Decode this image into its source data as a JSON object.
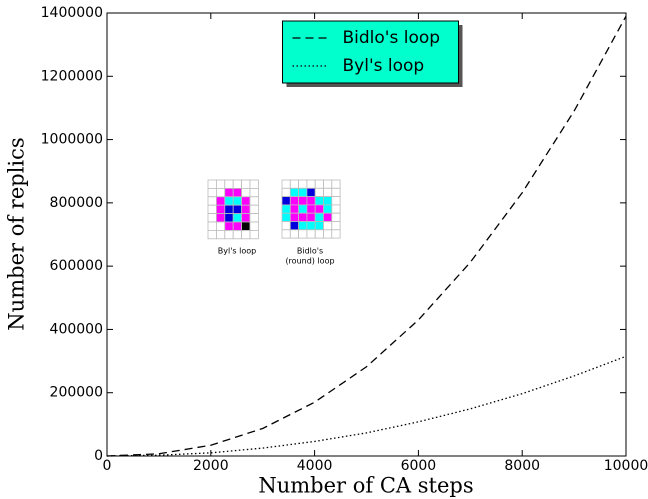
{
  "chart_data": {
    "type": "line",
    "x_label": "Number of CA steps",
    "y_label": "Number of replics",
    "x": [
      0,
      1000,
      2000,
      3000,
      4000,
      5000,
      6000,
      7000,
      8000,
      9000,
      10000
    ],
    "series": [
      {
        "name": "Bidlo's loop",
        "color": "#000000",
        "dash": "dashed",
        "values": [
          0,
          7000,
          34000,
          87000,
          170000,
          282000,
          430000,
          612000,
          832000,
          1090000,
          1390000
        ]
      },
      {
        "name": "Byl's loop",
        "color": "#000000",
        "dash": "dotted",
        "values": [
          0,
          2500,
          10000,
          25000,
          46000,
          73000,
          108000,
          149000,
          197000,
          253000,
          315000
        ]
      }
    ],
    "xlim": [
      0,
      10000
    ],
    "xticks": [
      0,
      2000,
      4000,
      6000,
      8000,
      10000
    ],
    "ylim": [
      0,
      1400000
    ],
    "yticks": [
      0,
      200000,
      400000,
      600000,
      800000,
      1000000,
      1200000,
      1400000
    ],
    "legend": "upper center",
    "legend_color": "#00ffcc",
    "annotations": [
      "Byl's loop",
      "Bidlo's",
      "(round) loop"
    ]
  }
}
